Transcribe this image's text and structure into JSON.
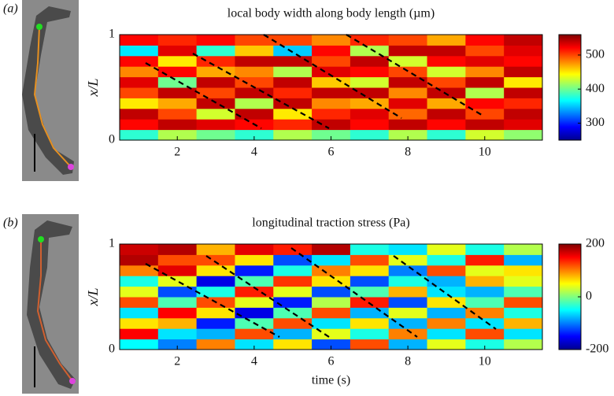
{
  "chart_data": [
    {
      "type": "heatmap",
      "title": "local body width along body length (µm)",
      "ylabel": "x/L",
      "x": [
        1,
        2,
        3,
        4,
        5,
        6,
        7,
        8,
        9,
        10,
        11
      ],
      "y": [
        0.05,
        0.15,
        0.25,
        0.35,
        0.45,
        0.55,
        0.65,
        0.75,
        0.85,
        0.95
      ],
      "values": [
        [
          380,
          520,
          540,
          450,
          500,
          530,
          480,
          520,
          360,
          520
        ],
        [
          420,
          540,
          500,
          470,
          540,
          400,
          520,
          450,
          530,
          510
        ],
        [
          400,
          530,
          430,
          540,
          500,
          540,
          470,
          510,
          380,
          520
        ],
        [
          380,
          520,
          540,
          420,
          540,
          500,
          480,
          540,
          460,
          500
        ],
        [
          420,
          510,
          450,
          540,
          510,
          540,
          420,
          540,
          350,
          500
        ],
        [
          400,
          540,
          510,
          480,
          540,
          460,
          530,
          500,
          520,
          480
        ],
        [
          380,
          520,
          530,
          470,
          540,
          430,
          520,
          540,
          420,
          510
        ],
        [
          420,
          540,
          490,
          530,
          480,
          540,
          500,
          430,
          540,
          500
        ],
        [
          380,
          520,
          540,
          470,
          540,
          500,
          430,
          520,
          540,
          470
        ],
        [
          430,
          540,
          500,
          520,
          420,
          540,
          480,
          530,
          500,
          520
        ],
        [
          410,
          530,
          540,
          510,
          540,
          450,
          540,
          520,
          530,
          540
        ]
      ],
      "colormap": "jet",
      "clim": [
        250,
        560
      ],
      "cticks": [
        300,
        400,
        500
      ],
      "xlim": [
        0.5,
        11.5
      ],
      "xticks": [
        2,
        4,
        6,
        8,
        10
      ],
      "ylim": [
        0,
        1
      ],
      "yticks": [
        0,
        1
      ]
    },
    {
      "type": "heatmap",
      "title": "longitudinal traction stress (Pa)",
      "ylabel": "x/L",
      "xlabel": "time (s)",
      "x": [
        1,
        2,
        3,
        4,
        5,
        6,
        7,
        8,
        9,
        10,
        11
      ],
      "y": [
        0.05,
        0.15,
        0.25,
        0.35,
        0.45,
        0.55,
        0.65,
        0.75,
        0.85,
        0.95
      ],
      "values": [
        [
          -50,
          150,
          60,
          -60,
          120,
          40,
          -40,
          100,
          180,
          170
        ],
        [
          -100,
          -60,
          80,
          150,
          -20,
          -120,
          40,
          160,
          120,
          180
        ],
        [
          100,
          -80,
          -140,
          60,
          120,
          -40,
          -160,
          60,
          120,
          80
        ],
        [
          -60,
          120,
          -20,
          -160,
          40,
          140,
          -20,
          -140,
          60,
          160
        ],
        [
          60,
          -80,
          120,
          -20,
          -140,
          40,
          130,
          -40,
          -120,
          140
        ],
        [
          -120,
          40,
          -60,
          120,
          20,
          -120,
          60,
          100,
          -60,
          180
        ],
        [
          120,
          -40,
          60,
          -80,
          140,
          -20,
          -120,
          60,
          120,
          -40
        ],
        [
          -80,
          100,
          -80,
          40,
          -120,
          80,
          -40,
          -100,
          40,
          -60
        ],
        [
          40,
          -60,
          100,
          -80,
          60,
          -60,
          -80,
          120,
          -40,
          40
        ],
        [
          -40,
          120,
          -60,
          100,
          -20,
          -80,
          80,
          40,
          140,
          -40
        ],
        [
          20,
          -60,
          80,
          -40,
          120,
          -20,
          40,
          60,
          -80,
          20
        ]
      ],
      "colormap": "jet",
      "clim": [
        -200,
        200
      ],
      "cticks": [
        -200,
        0,
        200
      ],
      "xlim": [
        0.5,
        11.5
      ],
      "xticks": [
        2,
        4,
        6,
        8,
        10
      ],
      "ylim": [
        0,
        1
      ],
      "yticks": [
        0,
        1
      ]
    }
  ],
  "panel_labels": [
    "(a)",
    "(b)"
  ]
}
